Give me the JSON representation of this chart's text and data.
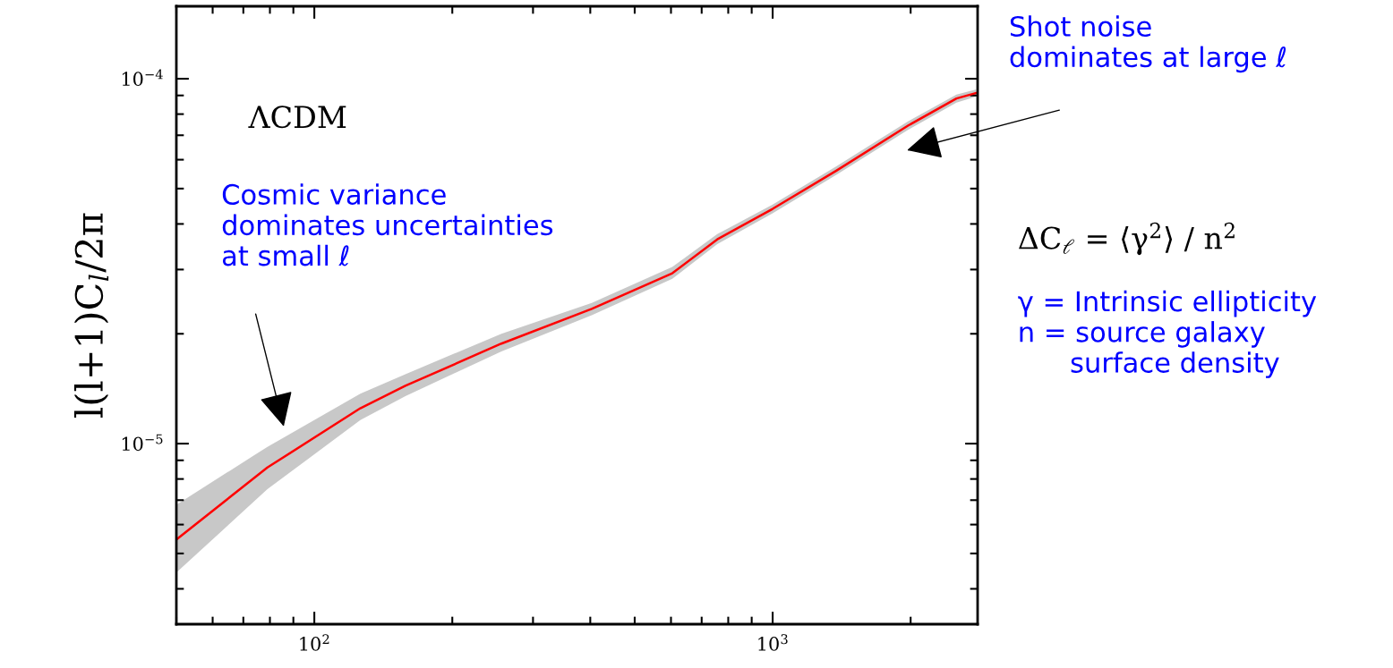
{
  "chart_data": {
    "type": "line",
    "ylabel": "l(l+1)C$_{l}$/2π",
    "log": "xy",
    "grid": false,
    "legend": false,
    "marker": "none",
    "line_style": "solid",
    "xlim": [
      50,
      2800
    ],
    "ylim": [
      3.2e-06,
      0.000158
    ],
    "xticks": [
      {
        "value": 50,
        "label": null
      },
      {
        "value": 60,
        "label": null
      },
      {
        "value": 70,
        "label": null
      },
      {
        "value": 80,
        "label": null
      },
      {
        "value": 90,
        "label": null
      },
      {
        "value": 100,
        "label": "10$^{2}$"
      },
      {
        "value": 200,
        "label": null
      },
      {
        "value": 300,
        "label": null
      },
      {
        "value": 400,
        "label": null
      },
      {
        "value": 500,
        "label": null
      },
      {
        "value": 600,
        "label": null
      },
      {
        "value": 700,
        "label": null
      },
      {
        "value": 800,
        "label": null
      },
      {
        "value": 900,
        "label": null
      },
      {
        "value": 1000,
        "label": "10$^{3}$"
      },
      {
        "value": 2000,
        "label": null
      }
    ],
    "yticks": [
      {
        "value": 4e-06,
        "label": null
      },
      {
        "value": 5e-06,
        "label": null
      },
      {
        "value": 6e-06,
        "label": null
      },
      {
        "value": 7e-06,
        "label": null
      },
      {
        "value": 8e-06,
        "label": null
      },
      {
        "value": 9e-06,
        "label": null
      },
      {
        "value": 1e-05,
        "label": "10$^{−5}$"
      },
      {
        "value": 2e-05,
        "label": null
      },
      {
        "value": 3e-05,
        "label": null
      },
      {
        "value": 4e-05,
        "label": null
      },
      {
        "value": 5e-05,
        "label": null
      },
      {
        "value": 6e-05,
        "label": null
      },
      {
        "value": 7e-05,
        "label": null
      },
      {
        "value": 8e-05,
        "label": null
      },
      {
        "value": 9e-05,
        "label": null
      },
      {
        "value": 0.0001,
        "label": "10$^{−4}$"
      }
    ],
    "x": [
      50,
      79,
      126,
      158,
      256,
      403,
      604,
      757,
      1000,
      1377,
      1977,
      2518,
      2780
    ],
    "series": [
      {
        "color": "#ff0000",
        "values": [
          5.46e-06,
          8.6e-06,
          1.25e-05,
          1.44e-05,
          1.88e-05,
          2.34e-05,
          2.93e-05,
          3.63e-05,
          4.4e-05,
          5.6e-05,
          7.45e-05,
          8.83e-05,
          9.14e-05
        ],
        "upper": [
          6.8e-06,
          9.8e-06,
          1.37e-05,
          1.55e-05,
          2e-05,
          2.43e-05,
          3.05e-05,
          3.75e-05,
          4.52e-05,
          5.75e-05,
          7.65e-05,
          9.05e-05,
          9.35e-05
        ],
        "lower": [
          4.43e-06,
          7.5e-06,
          1.16e-05,
          1.35e-05,
          1.79e-05,
          2.25e-05,
          2.83e-05,
          3.52e-05,
          4.28e-05,
          5.45e-05,
          7.25e-05,
          8.6e-05,
          8.93e-05
        ]
      }
    ],
    "annotations": [
      {
        "text": "ΛCDM"
      },
      "Cosmic variance\ndominates uncertainties\nat small ℓ",
      "Shot noise\ndominates at large ℓ",
      {
        "text": "ΔC$_{ℓ}$ = ⟨γ$^{2}$⟩ / n$^{2}$"
      },
      {
        "text": "γ = Intrinsic ellipticity\nn = source galaxy\n      surface density"
      }
    ]
  }
}
